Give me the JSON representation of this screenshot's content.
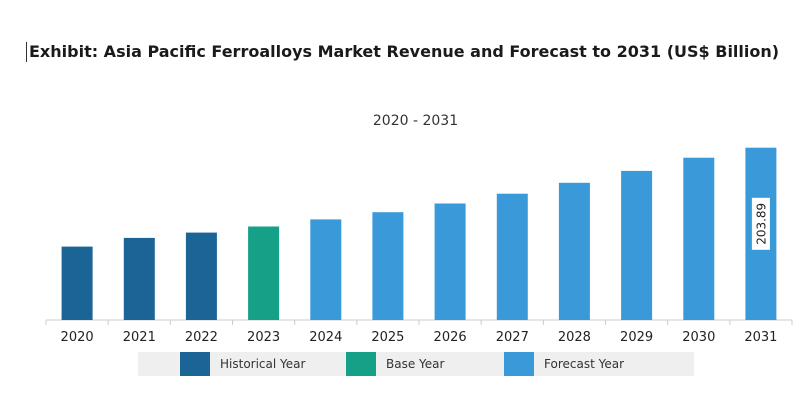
{
  "title": "Exhibit: Asia Pacific Ferroalloys Market Revenue and Forecast to 2031 (US$ Billion)",
  "subtitle": "2020 - 2031",
  "colors": {
    "historical": "#1a6496",
    "base": "#15a088",
    "forecast": "#3a9ad9",
    "legend_bg": "#efefef"
  },
  "legend": [
    {
      "label": "Historical Year",
      "color": "#1a6496"
    },
    {
      "label": "Base Year",
      "color": "#15a088"
    },
    {
      "label": "Forecast Year",
      "color": "#3a9ad9"
    }
  ],
  "chart_data": {
    "type": "bar",
    "categories": [
      "2020",
      "2021",
      "2022",
      "2023",
      "2024",
      "2025",
      "2026",
      "2027",
      "2028",
      "2029",
      "2030",
      "2031"
    ],
    "values": [
      86.8,
      97.2,
      103.4,
      110.7,
      119.1,
      127.6,
      137.8,
      149.4,
      162.3,
      176.4,
      192.0,
      203.89
    ],
    "year_type": [
      "historical",
      "historical",
      "historical",
      "base",
      "forecast",
      "forecast",
      "forecast",
      "forecast",
      "forecast",
      "forecast",
      "forecast",
      "forecast"
    ],
    "data_labels": [
      {
        "index": 11,
        "text": "203.89"
      }
    ],
    "ylim": [
      0,
      213
    ],
    "xlabel": "",
    "ylabel": "",
    "grid": false,
    "legend_position": "bottom"
  }
}
